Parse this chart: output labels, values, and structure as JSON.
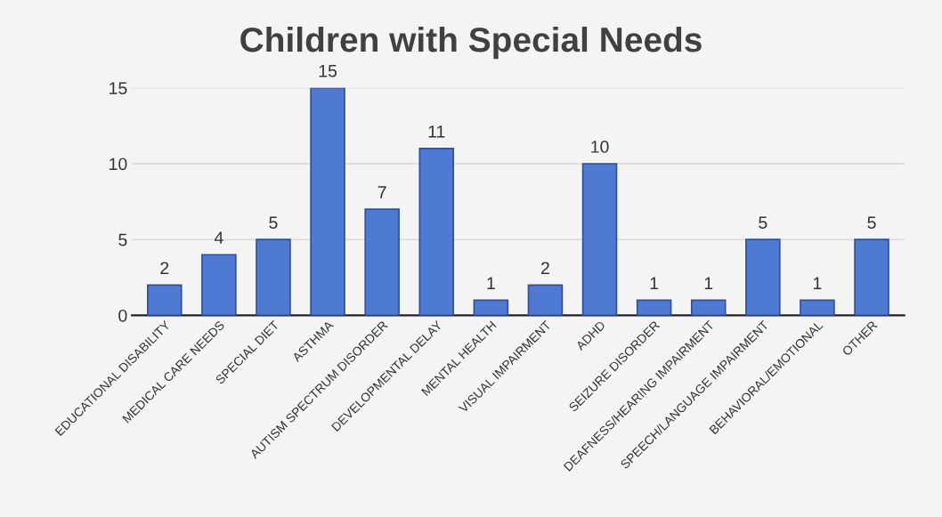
{
  "chart_data": {
    "type": "bar",
    "title": "Children with Special Needs",
    "categories": [
      "EDUCATIONAL DISABILITY",
      "MEDICAL CARE NEEDS",
      "SPECIAL DIET",
      "ASTHMA",
      "AUTISM SPECTRUM DISORDER",
      "DEVELOPMENTAL DELAY",
      "MENTAL HEALTH",
      "VISUAL IMPAIRMENT",
      "ADHD",
      "SEIZURE DISORDER",
      "DEAFNESS/HEARING IMPAIRMENT",
      "SPEECH/LANGUAGE IMPAIRMENT",
      "BEHAVIORAL/EMOTIONAL",
      "OTHER"
    ],
    "values": [
      2,
      4,
      5,
      15,
      7,
      11,
      1,
      2,
      10,
      1,
      1,
      5,
      1,
      5
    ],
    "color": "#4f7ad3",
    "ylim": [
      0,
      15
    ],
    "yticks": [
      0,
      5,
      10,
      15
    ],
    "grid": "y",
    "data_labels": true
  }
}
